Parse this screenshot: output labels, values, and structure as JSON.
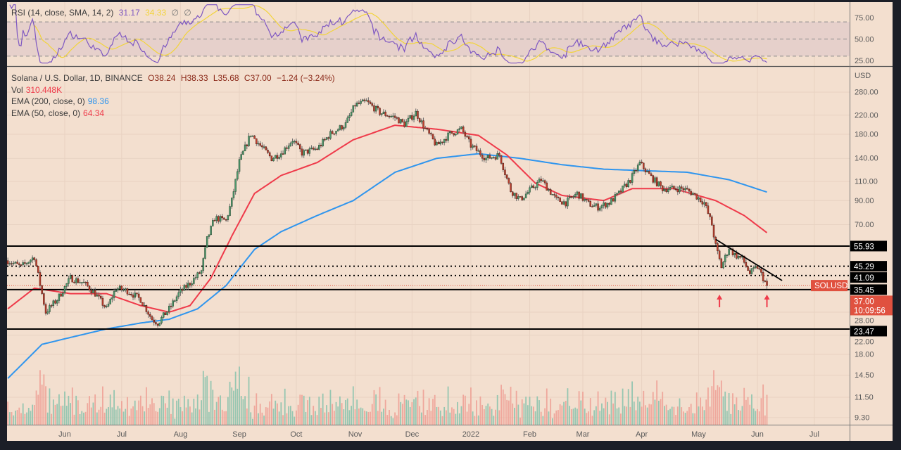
{
  "rsi_legend": {
    "title": "RSI (14, close, SMA, 14, 2)",
    "rsi_value": "31.17",
    "sma_value": "34.33",
    "extra1": "∅",
    "extra2": "∅"
  },
  "main_legend": {
    "symbol": "Solana / U.S. Dollar, 1D, BINANCE",
    "open": "O38.24",
    "high": "H38.33",
    "low": "L35.68",
    "close": "C37.00",
    "change": "−1.24 (−3.24%)",
    "vol_label": "Vol",
    "vol_value": "310.448K",
    "ema200_label": "EMA (200, close, 0)",
    "ema200_value": "98.36",
    "ema50_label": "EMA (50, close, 0)",
    "ema50_value": "64.34"
  },
  "colors": {
    "background": "#f3dfcf",
    "frame": "#1b1e27",
    "up": "#4f9a6e",
    "down": "#c2412f",
    "ema200": "#2f95ee",
    "ema50": "#ef3a4a",
    "rsi": "#7e57c2",
    "rsi_sma": "#f2d43a",
    "price_tag": "#e0513f",
    "level_tag": "#000000"
  },
  "chart_data": {
    "type": "candlestick",
    "symbol": "SOLUSD",
    "interval": "1D",
    "currency_label": "USD",
    "y_scale": "log",
    "grid": true,
    "price_ticks": [
      "280.00",
      "220.00",
      "180.00",
      "140.00",
      "110.00",
      "90.00",
      "70.00",
      "28.00",
      "22.00",
      "18.00",
      "14.50",
      "11.50",
      "9.30"
    ],
    "rsi_ticks": [
      "75.00",
      "50.00",
      "25.00"
    ],
    "x_ticks": [
      "Jun",
      "Jul",
      "Aug",
      "Sep",
      "Oct",
      "Nov",
      "Dec",
      "2022",
      "Feb",
      "Mar",
      "Apr",
      "May",
      "Jun",
      "Jul"
    ],
    "closes_approx": [
      [
        "2021-05-02",
        48
      ],
      [
        "2021-05-09",
        45
      ],
      [
        "2021-05-16",
        50
      ],
      [
        "2021-05-22",
        28
      ],
      [
        "2021-05-28",
        32
      ],
      [
        "2021-06-04",
        40
      ],
      [
        "2021-06-11",
        38
      ],
      [
        "2021-06-17",
        34
      ],
      [
        "2021-06-23",
        29
      ],
      [
        "2021-06-28",
        36
      ],
      [
        "2021-07-04",
        35
      ],
      [
        "2021-07-11",
        32
      ],
      [
        "2021-07-17",
        26
      ],
      [
        "2021-07-20",
        25
      ],
      [
        "2021-07-26",
        29
      ],
      [
        "2021-07-31",
        34
      ],
      [
        "2021-08-06",
        38
      ],
      [
        "2021-08-12",
        43
      ],
      [
        "2021-08-15",
        60
      ],
      [
        "2021-08-19",
        75
      ],
      [
        "2021-08-25",
        73
      ],
      [
        "2021-08-28",
        90
      ],
      [
        "2021-09-01",
        135
      ],
      [
        "2021-09-07",
        181
      ],
      [
        "2021-09-12",
        160
      ],
      [
        "2021-09-18",
        140
      ],
      [
        "2021-09-23",
        148
      ],
      [
        "2021-09-29",
        170
      ],
      [
        "2021-10-04",
        148
      ],
      [
        "2021-10-12",
        155
      ],
      [
        "2021-10-19",
        181
      ],
      [
        "2021-10-27",
        200
      ],
      [
        "2021-11-01",
        245
      ],
      [
        "2021-11-07",
        253
      ],
      [
        "2021-11-14",
        226
      ],
      [
        "2021-11-22",
        215
      ],
      [
        "2021-11-27",
        200
      ],
      [
        "2021-12-03",
        226
      ],
      [
        "2021-12-08",
        190
      ],
      [
        "2021-12-14",
        160
      ],
      [
        "2021-12-21",
        181
      ],
      [
        "2021-12-27",
        190
      ],
      [
        "2022-01-01",
        160
      ],
      [
        "2022-01-09",
        140
      ],
      [
        "2022-01-16",
        145
      ],
      [
        "2022-01-22",
        100
      ],
      [
        "2022-01-27",
        91
      ],
      [
        "2022-02-02",
        102
      ],
      [
        "2022-02-07",
        112
      ],
      [
        "2022-02-15",
        91
      ],
      [
        "2022-02-20",
        88
      ],
      [
        "2022-02-26",
        97
      ],
      [
        "2022-03-04",
        87
      ],
      [
        "2022-03-09",
        84
      ],
      [
        "2022-03-15",
        88
      ],
      [
        "2022-03-20",
        97
      ],
      [
        "2022-03-26",
        112
      ],
      [
        "2022-03-31",
        133
      ],
      [
        "2022-04-06",
        115
      ],
      [
        "2022-04-12",
        102
      ],
      [
        "2022-04-17",
        102
      ],
      [
        "2022-04-23",
        102
      ],
      [
        "2022-04-28",
        97
      ],
      [
        "2022-05-04",
        88
      ],
      [
        "2022-05-08",
        70
      ],
      [
        "2022-05-10",
        56
      ],
      [
        "2022-05-13",
        45
      ],
      [
        "2022-05-17",
        55
      ],
      [
        "2022-05-20",
        51
      ],
      [
        "2022-05-24",
        49
      ],
      [
        "2022-05-28",
        42
      ],
      [
        "2022-06-01",
        45
      ],
      [
        "2022-06-06",
        37
      ]
    ],
    "ema200_approx": [
      [
        "2021-05-02",
        14
      ],
      [
        "2021-05-20",
        20
      ],
      [
        "2021-06-04",
        21.5
      ],
      [
        "2021-06-23",
        23.5
      ],
      [
        "2021-07-11",
        25
      ],
      [
        "2021-07-26",
        26
      ],
      [
        "2021-08-10",
        29
      ],
      [
        "2021-08-25",
        37
      ],
      [
        "2021-09-09",
        54
      ],
      [
        "2021-09-23",
        65
      ],
      [
        "2021-10-12",
        77
      ],
      [
        "2021-10-31",
        90
      ],
      [
        "2021-11-22",
        121
      ],
      [
        "2021-12-14",
        140
      ],
      [
        "2022-01-05",
        147
      ],
      [
        "2022-01-27",
        140
      ],
      [
        "2022-02-18",
        131
      ],
      [
        "2022-03-12",
        125
      ],
      [
        "2022-04-03",
        123
      ],
      [
        "2022-04-25",
        121
      ],
      [
        "2022-05-17",
        112
      ],
      [
        "2022-06-06",
        98.36
      ]
    ],
    "ema50_approx": [
      [
        "2021-05-02",
        29
      ],
      [
        "2021-05-16",
        36
      ],
      [
        "2021-06-04",
        34
      ],
      [
        "2021-06-23",
        34
      ],
      [
        "2021-07-11",
        30
      ],
      [
        "2021-07-26",
        28
      ],
      [
        "2021-08-06",
        30
      ],
      [
        "2021-08-17",
        40
      ],
      [
        "2021-08-28",
        62
      ],
      [
        "2021-09-09",
        97
      ],
      [
        "2021-09-23",
        117
      ],
      [
        "2021-10-12",
        134
      ],
      [
        "2021-10-31",
        170
      ],
      [
        "2021-11-22",
        198
      ],
      [
        "2021-12-14",
        190
      ],
      [
        "2022-01-05",
        178
      ],
      [
        "2022-01-20",
        145
      ],
      [
        "2022-02-04",
        108
      ],
      [
        "2022-02-18",
        95
      ],
      [
        "2022-03-12",
        90
      ],
      [
        "2022-03-27",
        102
      ],
      [
        "2022-04-18",
        102
      ],
      [
        "2022-05-10",
        90
      ],
      [
        "2022-05-25",
        77
      ],
      [
        "2022-06-06",
        64.34
      ]
    ],
    "levels": [
      {
        "price": 55.93,
        "label": "55.93",
        "style": "solid"
      },
      {
        "price": 45.29,
        "label": "45.29",
        "style": "dotted"
      },
      {
        "price": 41.09,
        "label": "41.09",
        "style": "dotted"
      },
      {
        "price": 35.45,
        "label": "35.45",
        "style": "solid"
      },
      {
        "price": 23.47,
        "label": "23.47",
        "style": "solid"
      }
    ],
    "trendline": [
      [
        "2022-05-10",
        60
      ],
      [
        "2022-06-14",
        39
      ]
    ],
    "arrows": [
      "2022-05-12",
      "2022-06-06"
    ],
    "last_price": {
      "value": 37.0,
      "label": "37.00",
      "countdown": "10:09:56",
      "symbol_tag": "SOLUSD"
    }
  }
}
